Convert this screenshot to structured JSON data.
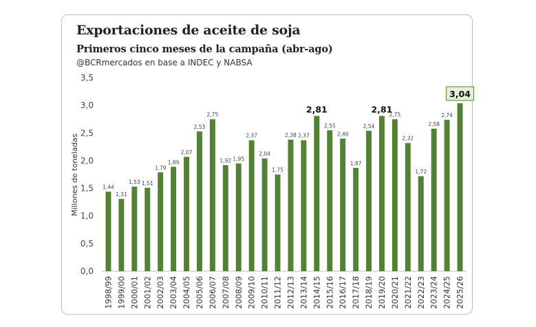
{
  "chart_data": {
    "type": "bar",
    "title": "Exportaciones de aceite de soja",
    "subtitle": "Primeros cinco meses de la campaña (abr-ago)",
    "source": "@BCRmercados  en base a INDEC y NABSA",
    "ylabel": "Millones de toneladas",
    "xlabel": "",
    "ylim": [
      0,
      3.5
    ],
    "yticks": [
      "0,0",
      "0,5",
      "1,0",
      "1,5",
      "2,0",
      "2,5",
      "3,0",
      "3,5"
    ],
    "grid": false,
    "bar_color": "#548235",
    "highlight_fill": "#e2efda",
    "categories": [
      "1998/99",
      "1999/00",
      "2000/01",
      "2001/02",
      "2002/03",
      "2003/04",
      "2004/05",
      "2005/06",
      "2006/07",
      "2007/08",
      "2008/09",
      "2009/10",
      "2010/11",
      "2011/12",
      "2012/13",
      "2013/14",
      "2014/15",
      "2015/16",
      "2016/17",
      "2017/18",
      "2018/19",
      "2019/20",
      "2020/21",
      "2021/22",
      "2022/23",
      "2023/24",
      "2024/25",
      "2025/26"
    ],
    "values": [
      1.44,
      1.31,
      1.53,
      1.51,
      1.79,
      1.89,
      2.07,
      2.53,
      2.75,
      1.92,
      1.95,
      2.37,
      2.04,
      1.75,
      2.38,
      2.37,
      2.81,
      2.55,
      2.4,
      1.87,
      2.54,
      2.81,
      2.75,
      2.32,
      1.72,
      2.58,
      2.74,
      3.04
    ],
    "labels": [
      "1,44",
      "1,31",
      "1,53",
      "1,51",
      "1,79",
      "1,89",
      "2,07",
      "2,53",
      "2,75",
      "1,92",
      "1,95",
      "2,37",
      "2,04",
      "1,75",
      "2,38",
      "2,37",
      "2,81",
      "2,55",
      "2,40",
      "1,87",
      "2,54",
      "2,81",
      "2,75",
      "2,32",
      "1,72",
      "2,58",
      "2,74",
      "3,04"
    ],
    "emphasized_labels": [
      "2014/15",
      "2019/20"
    ],
    "boxed_label": "2025/26"
  }
}
